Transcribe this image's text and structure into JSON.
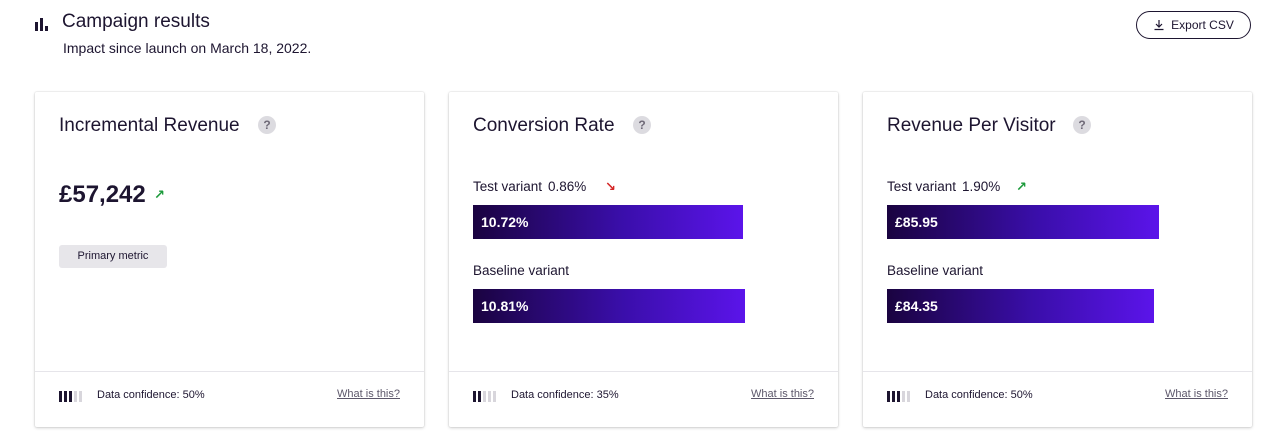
{
  "header": {
    "title": "Campaign results",
    "subtitle": "Impact since launch on March 18, 2022.",
    "export_label": "Export CSV",
    "icon": "bar-chart-icon"
  },
  "colors": {
    "text": "#1d1530",
    "bar_start": "#1a0340",
    "bar_end": "#5b14ea",
    "up": "#1b9a3a",
    "down": "#d42525"
  },
  "cards": [
    {
      "title": "Incremental Revenue",
      "help": "?",
      "value": "£57,242",
      "trend": "up",
      "trend_glyph": "↗",
      "tag": "Primary metric",
      "confidence_text": "Data confidence: 50%",
      "confidence_level": 3,
      "confidence_max": 5,
      "link": "What is this?"
    },
    {
      "title": "Conversion Rate",
      "help": "?",
      "test_label": "Test variant",
      "test_change": "0.86%",
      "trend": "down",
      "trend_glyph": "↘",
      "test_value": "10.72%",
      "test_fraction": 0.9917,
      "baseline_label": "Baseline variant",
      "baseline_value": "10.81%",
      "baseline_fraction": 1.0,
      "confidence_text": "Data confidence: 35%",
      "confidence_level": 2,
      "confidence_max": 5,
      "link": "What is this?"
    },
    {
      "title": "Revenue Per Visitor",
      "help": "?",
      "test_label": "Test variant",
      "test_change": "1.90%",
      "trend": "up",
      "trend_glyph": "↗",
      "test_value": "£85.95",
      "test_fraction": 1.0,
      "baseline_label": "Baseline variant",
      "baseline_value": "£84.35",
      "baseline_fraction": 0.9814,
      "confidence_text": "Data confidence: 50%",
      "confidence_level": 3,
      "confidence_max": 5,
      "link": "What is this?"
    }
  ]
}
